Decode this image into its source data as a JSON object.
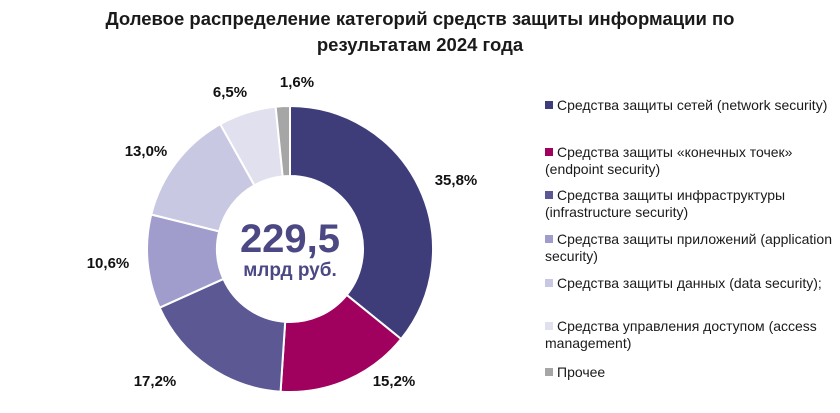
{
  "chart_data": {
    "type": "pie",
    "title": "Долевое распределение категорий средств защиты информации по результатам 2024 года",
    "center_value": "229,5",
    "center_unit": "млрд руб.",
    "slices": [
      {
        "name": "Средства защиты сетей (network security)",
        "value": 35.8,
        "label": "35,8%",
        "color": "#3e3d7a"
      },
      {
        "name": "Средства защиты «конечных точек» (endpoint security)",
        "value": 15.2,
        "label": "15,2%",
        "color": "#a0005e"
      },
      {
        "name": "Средства защиты инфраструктуры (infrastructure security)",
        "value": 17.2,
        "label": "17,2%",
        "color": "#5b5894"
      },
      {
        "name": "Средства защиты приложений (application security)",
        "value": 10.6,
        "label": "10,6%",
        "color": "#a09dcc"
      },
      {
        "name": "Средства защиты данных (data security);",
        "value": 13.0,
        "label": "13,0%",
        "color": "#c9c8e2"
      },
      {
        "name": "Средства управления доступом (access management)",
        "value": 6.5,
        "label": "6,5%",
        "color": "#e1e0ef"
      },
      {
        "name": "Прочее",
        "value": 1.6,
        "label": "1,6%",
        "color": "#a6a6a6"
      }
    ]
  }
}
